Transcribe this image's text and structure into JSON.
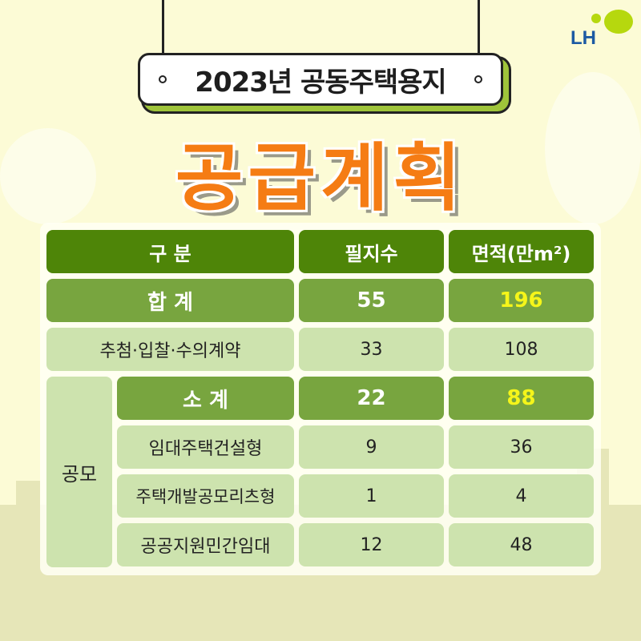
{
  "logo": {
    "text": "LH",
    "colors": [
      "#b6d80e",
      "#1c5aa3"
    ]
  },
  "title": {
    "subtitle": "2023년 공동주택용지",
    "main": "공급계획"
  },
  "table": {
    "headers": [
      "구 분",
      "필지수",
      "면적(만m²)"
    ],
    "total": {
      "label": "합 계",
      "lots": "55",
      "area": "196"
    },
    "lottery": {
      "label": "추첨·입찰·수의계약",
      "lots": "33",
      "area": "108"
    },
    "contest": {
      "group": "공모",
      "subtotal": {
        "label": "소 계",
        "lots": "22",
        "area": "88"
      },
      "rows": [
        {
          "label": "임대주택건설형",
          "lots": "9",
          "area": "36"
        },
        {
          "label": "주택개발공모리츠형",
          "lots": "1",
          "area": "4"
        },
        {
          "label": "공공지원민간임대",
          "lots": "12",
          "area": "48"
        }
      ]
    }
  },
  "colors": {
    "header": "#4e8508",
    "total": "#78a53f",
    "light": "#cde3ae",
    "highlight": "#f5f51a",
    "title_orange": "#f57c14"
  }
}
